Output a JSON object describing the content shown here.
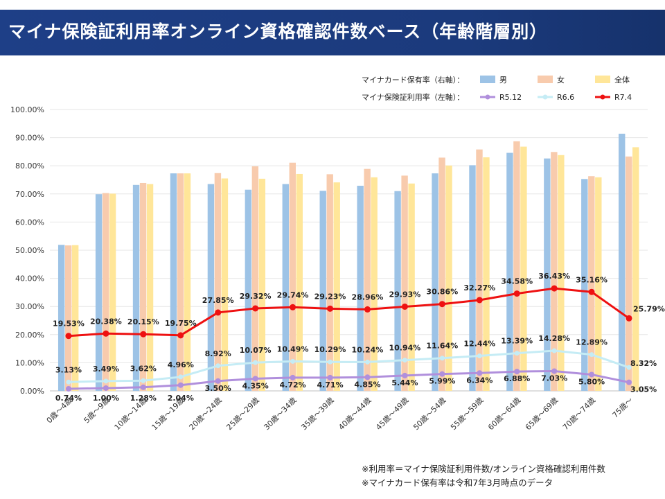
{
  "header": {
    "title": "マイナ保険証利用率オンライン資格確認件数ベース（年齢階層別）"
  },
  "legend": {
    "bar_group_label": "マイナカード保有率（右軸）：",
    "line_group_label": "マイナ保険証利用率（左軸）：",
    "bars": [
      {
        "name": "男",
        "color": "#9dc3e6"
      },
      {
        "name": "女",
        "color": "#f8cbad"
      },
      {
        "name": "全体",
        "color": "#ffe699"
      }
    ],
    "lines": [
      {
        "name": "R5.12",
        "color": "#b08fdc"
      },
      {
        "name": "R6.6",
        "color": "#c5ecf5"
      },
      {
        "name": "R7.4",
        "color": "#ee1111"
      }
    ]
  },
  "notes": {
    "line1": "※利用率＝マイナ保険証利用件数/オンライン資格確認利用件数",
    "line2": "※マイナカード保有率は令和7年3月時点のデータ"
  },
  "chart_data": {
    "type": "bar",
    "categories": [
      "0歳～4歳",
      "5歳～9歳",
      "10歳～14歳",
      "15歳～19歳",
      "20歳～24歳",
      "25歳～29歳",
      "30歳～34歳",
      "35歳～39歳",
      "40歳～44歳",
      "45歳～49歳",
      "50歳～54歳",
      "55歳～59歳",
      "60歳～64歳",
      "65歳～69歳",
      "70歳～74歳",
      "75歳～"
    ],
    "y_ticks": [
      "0.00%",
      "10.00%",
      "20.00%",
      "30.00%",
      "40.00%",
      "50.00%",
      "60.00%",
      "70.00%",
      "80.00%",
      "90.00%",
      "100.00%"
    ],
    "ylim": [
      0,
      100
    ],
    "bar_series": [
      {
        "name": "男",
        "values": [
          51.9,
          69.9,
          73.2,
          77.3,
          73.5,
          71.5,
          73.5,
          71.1,
          72.9,
          71.0,
          77.3,
          80.2,
          84.6,
          82.6,
          75.3,
          91.4
        ]
      },
      {
        "name": "女",
        "values": [
          51.7,
          70.3,
          73.9,
          77.3,
          77.4,
          79.8,
          81.1,
          77.0,
          78.9,
          76.5,
          82.9,
          85.8,
          88.7,
          84.9,
          76.3,
          83.3
        ]
      },
      {
        "name": "全体",
        "values": [
          51.8,
          70.1,
          73.5,
          77.3,
          75.5,
          75.4,
          77.1,
          74.1,
          75.9,
          73.7,
          80.1,
          83.0,
          86.8,
          83.8,
          75.9,
          86.6
        ]
      }
    ],
    "line_series": [
      {
        "name": "R5.12",
        "values": [
          0.74,
          1.0,
          1.28,
          2.04,
          3.5,
          4.35,
          4.72,
          4.71,
          4.85,
          5.44,
          5.99,
          6.34,
          6.88,
          7.03,
          5.8,
          3.05
        ],
        "labels": [
          "0.74%",
          "1.00%",
          "1.28%",
          "2.04%",
          "3.50%",
          "4.35%",
          "4.72%",
          "4.71%",
          "4.85%",
          "5.44%",
          "5.99%",
          "6.34%",
          "6.88%",
          "7.03%",
          "5.80%",
          "3.05%"
        ]
      },
      {
        "name": "R6.6",
        "values": [
          3.13,
          3.49,
          3.62,
          4.96,
          8.92,
          10.07,
          10.49,
          10.29,
          10.24,
          10.94,
          11.64,
          12.44,
          13.39,
          14.28,
          12.89,
          8.32
        ],
        "labels": [
          "3.13%",
          "3.49%",
          "3.62%",
          "4.96%",
          "8.92%",
          "10.07%",
          "10.49%",
          "10.29%",
          "10.24%",
          "10.94%",
          "11.64%",
          "12.44%",
          "13.39%",
          "14.28%",
          "12.89%",
          "8.32%"
        ]
      },
      {
        "name": "R7.4",
        "values": [
          19.53,
          20.38,
          20.15,
          19.75,
          27.85,
          29.32,
          29.74,
          29.23,
          28.96,
          29.93,
          30.86,
          32.27,
          34.58,
          36.43,
          35.16,
          25.79
        ],
        "labels": [
          "19.53%",
          "20.38%",
          "20.15%",
          "19.75%",
          "27.85%",
          "29.32%",
          "29.74%",
          "29.23%",
          "28.96%",
          "29.93%",
          "30.86%",
          "32.27%",
          "34.58%",
          "36.43%",
          "35.16%",
          "25.79%"
        ]
      }
    ]
  }
}
